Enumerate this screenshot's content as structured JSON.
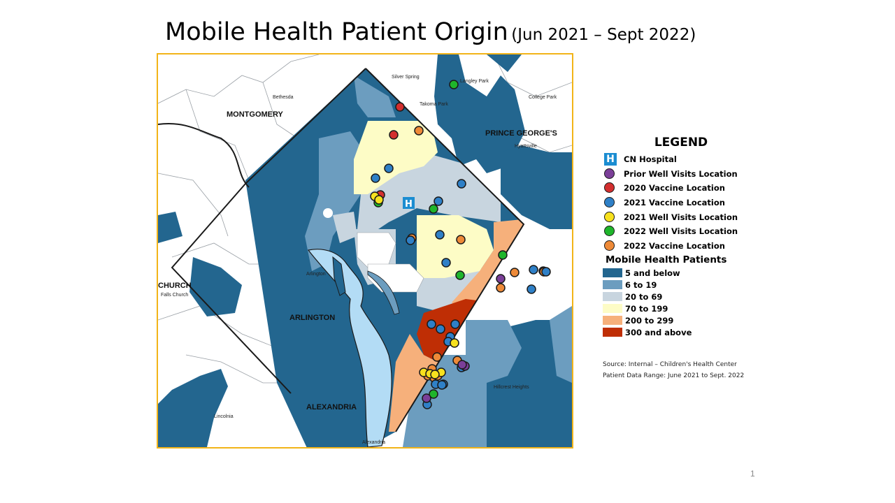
{
  "slide": {
    "title": "Mobile Health Patient Origin",
    "title_range": "(Jun 2021 – Sept 2022)",
    "page_number": "1"
  },
  "map": {
    "region_labels": {
      "montgomery": "MONTGOMERY",
      "prince_georges": "PRINCE GEORGE'S",
      "church": "CHURCH",
      "arlington": "ARLINGTON",
      "alexandria": "ALEXANDRIA"
    },
    "place_labels": {
      "bethesda": "Bethesda",
      "silver_spring": "Silver Spring",
      "takoma_park": "Takoma Park",
      "langley_park": "Langley Park",
      "college_park": "College Park",
      "hyattsville": "Hyattsville",
      "arlington": "Arlington",
      "falls_church": "Falls Church",
      "hillcrest_heights": "Hillcrest Heights",
      "lincolnia": "Lincolnia",
      "alexandria": "Alexandria"
    },
    "hospital_icon_letter": "H",
    "marker_counts": {
      "prior_well_visits": 4,
      "vaccine_2020": 3,
      "vaccine_2021": 20,
      "well_visits_2021": 7,
      "well_visits_2022": 6,
      "vaccine_2022": 14
    }
  },
  "legend": {
    "title": "LEGEND",
    "items": [
      {
        "label": "CN Hospital",
        "icon": "hospital-h-icon",
        "color": "#1b8dd1"
      },
      {
        "label": "Prior Well Visits Location",
        "icon": "circle-marker",
        "color": "#7b3f98"
      },
      {
        "label": "2020 Vaccine Location",
        "icon": "circle-marker",
        "color": "#d32f2f"
      },
      {
        "label": "2021 Vaccine Location",
        "icon": "circle-marker",
        "color": "#2f80c7"
      },
      {
        "label": "2021 Well Visits Location",
        "icon": "circle-marker",
        "color": "#f7e11e"
      },
      {
        "label": "2022 Well Visits Location",
        "icon": "circle-marker",
        "color": "#1fb52b"
      },
      {
        "label": "2022 Vaccine Location",
        "icon": "circle-marker",
        "color": "#ee8a38"
      }
    ],
    "subtitle": "Mobile Health Patients",
    "classes": [
      {
        "label": "5 and below",
        "color": "#23668f"
      },
      {
        "label": "6 to 19",
        "color": "#6c9dbf"
      },
      {
        "label": "20 to 69",
        "color": "#c8d5df"
      },
      {
        "label": "70 to 199",
        "color": "#fdfcc6"
      },
      {
        "label": "200 to 299",
        "color": "#f6b07b"
      },
      {
        "label": "300 and above",
        "color": "#bf2e05"
      }
    ]
  },
  "source": {
    "line1": "Source: Internal – Children's Health Center",
    "line2": "Patient Data Range: June 2021 to Sept. 2022"
  }
}
